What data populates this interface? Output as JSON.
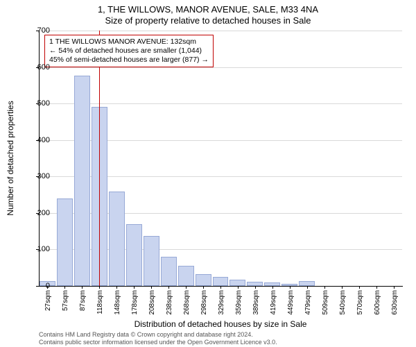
{
  "chart": {
    "type": "histogram",
    "title_line1": "1, THE WILLOWS, MANOR AVENUE, SALE, M33 4NA",
    "title_line2": "Size of property relative to detached houses in Sale",
    "ylabel": "Number of detached properties",
    "xlabel": "Distribution of detached houses by size in Sale",
    "ylim": [
      0,
      700
    ],
    "ytick_step": 100,
    "yticks": [
      0,
      100,
      200,
      300,
      400,
      500,
      600,
      700
    ],
    "categories": [
      "27sqm",
      "57sqm",
      "87sqm",
      "118sqm",
      "148sqm",
      "178sqm",
      "208sqm",
      "238sqm",
      "268sqm",
      "298sqm",
      "329sqm",
      "359sqm",
      "389sqm",
      "419sqm",
      "449sqm",
      "479sqm",
      "509sqm",
      "540sqm",
      "570sqm",
      "600sqm",
      "630sqm"
    ],
    "values": [
      14,
      240,
      577,
      490,
      258,
      170,
      137,
      80,
      55,
      32,
      25,
      17,
      12,
      10,
      6,
      14,
      0,
      0,
      0,
      0,
      0
    ],
    "bar_fill": "#c9d4ef",
    "bar_border": "#97a9d6",
    "grid_color": "#d9d9d9",
    "background_color": "#ffffff",
    "title_fontsize": 13,
    "label_fontsize": 12,
    "tick_fontsize": 11,
    "marker_category_index": 3,
    "marker_color": "#c00000",
    "annotation": {
      "line1": "1 THE WILLOWS MANOR AVENUE: 132sqm",
      "line2": "← 54% of detached houses are smaller (1,044)",
      "line3": "45% of semi-detached houses are larger (877) →",
      "border_color": "#c00000",
      "bg_color": "#ffffff",
      "fontsize": 10.5
    }
  },
  "footer": {
    "line1": "Contains HM Land Registry data © Crown copyright and database right 2024.",
    "line2": "Contains public sector information licensed under the Open Government Licence v3.0."
  }
}
